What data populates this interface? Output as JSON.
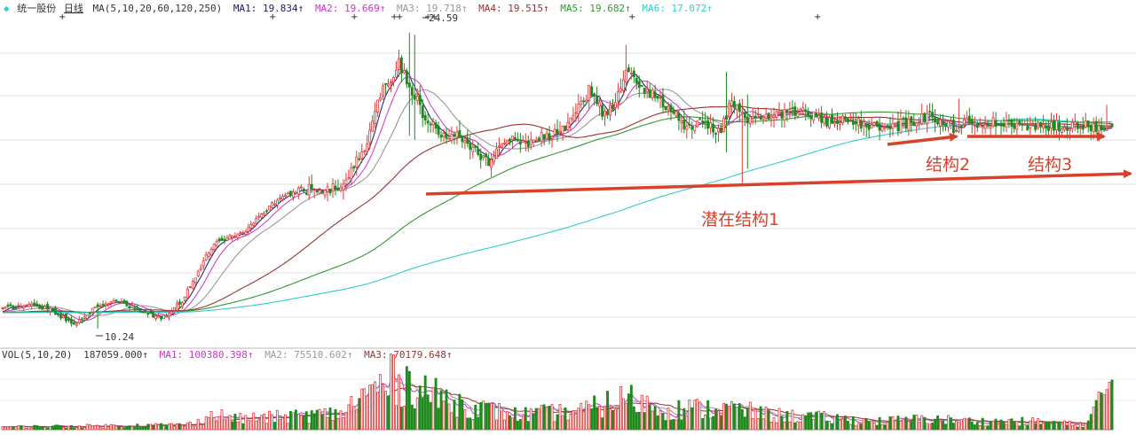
{
  "header": {
    "dot": "◆",
    "stock_name": "统一股份",
    "period": "日线",
    "ma_spec": "MA(5,10,20,60,120,250)",
    "ma_values": [
      {
        "label": "MA1: 19.834↑",
        "color": "#1a1a66"
      },
      {
        "label": "MA2: 19.669↑",
        "color": "#cc33cc"
      },
      {
        "label": "MA3: 19.718↑",
        "color": "#999999"
      },
      {
        "label": "MA4: 19.515↑",
        "color": "#993333"
      },
      {
        "label": "MA5: 19.682↑",
        "color": "#339933"
      },
      {
        "label": "MA6: 17.072↑",
        "color": "#33cccc"
      }
    ],
    "arrow_color": "#e02020"
  },
  "vol_header": {
    "spec": "VOL(5,10,20)",
    "value": "187059.000↑",
    "ma_values": [
      {
        "label": "MA1: 100380.398↑",
        "color": "#cc33cc"
      },
      {
        "label": "MA2: 75510.602↑",
        "color": "#999999"
      },
      {
        "label": "MA3: 70179.648↑",
        "color": "#993333"
      }
    ]
  },
  "chart_data": {
    "type": "candlestick",
    "title": "统一股份 日线",
    "ylim": [
      9.5,
      25.5
    ],
    "price_labels": {
      "high": "24.59",
      "low": "10.24"
    },
    "anchors": [
      [
        0,
        11.2
      ],
      [
        10,
        11.4
      ],
      [
        18,
        11.2
      ],
      [
        27,
        10.4
      ],
      [
        32,
        11.0
      ],
      [
        42,
        11.6
      ],
      [
        52,
        11.1
      ],
      [
        60,
        10.7
      ],
      [
        68,
        11.6
      ],
      [
        80,
        14.4
      ],
      [
        92,
        15.0
      ],
      [
        102,
        16.3
      ],
      [
        112,
        17.0
      ],
      [
        122,
        17.1
      ],
      [
        127,
        17.0
      ],
      [
        137,
        18.9
      ],
      [
        142,
        21.4
      ],
      [
        147,
        22.4
      ],
      [
        150,
        23.2
      ],
      [
        154,
        22.0
      ],
      [
        160,
        20.5
      ],
      [
        166,
        19.6
      ],
      [
        172,
        19.8
      ],
      [
        178,
        19.1
      ],
      [
        184,
        18.3
      ],
      [
        190,
        19.4
      ],
      [
        198,
        19.3
      ],
      [
        206,
        19.6
      ],
      [
        214,
        20.1
      ],
      [
        222,
        21.8
      ],
      [
        228,
        20.6
      ],
      [
        232,
        21.3
      ],
      [
        236,
        22.6
      ],
      [
        242,
        22.0
      ],
      [
        250,
        21.2
      ],
      [
        258,
        20.2
      ],
      [
        266,
        20.1
      ],
      [
        272,
        19.9
      ],
      [
        276,
        21.3
      ],
      [
        282,
        20.2
      ],
      [
        288,
        20.6
      ],
      [
        296,
        20.7
      ],
      [
        304,
        20.8
      ],
      [
        312,
        20.2
      ],
      [
        318,
        20.3
      ],
      [
        326,
        20.2
      ],
      [
        334,
        19.9
      ],
      [
        344,
        20.3
      ],
      [
        352,
        20.6
      ],
      [
        360,
        20.0
      ],
      [
        368,
        20.3
      ],
      [
        376,
        20.2
      ],
      [
        386,
        20.0
      ],
      [
        396,
        20.1
      ],
      [
        404,
        20.1
      ],
      [
        412,
        20.1
      ],
      [
        420,
        20.0
      ]
    ],
    "highlights": [
      {
        "i": 154,
        "high": 24.6,
        "low": 19.6
      },
      {
        "i": 156,
        "high": 24.5,
        "low": 19.4
      },
      {
        "i": 236,
        "high": 24.0,
        "low": 21.9
      },
      {
        "i": 274,
        "high": 22.7,
        "low": 18.8
      },
      {
        "i": 280,
        "high": 21.4,
        "low": 17.3
      },
      {
        "i": 282,
        "high": 21.6,
        "low": 18.0
      },
      {
        "i": 362,
        "high": 21.4,
        "low": 20.0
      },
      {
        "i": 418,
        "high": 21.1,
        "low": 19.9
      },
      {
        "i": 36,
        "high": 11.5,
        "low": 10.24
      }
    ],
    "n_candles": 421,
    "ma_periods": [
      5,
      10,
      20,
      60,
      120,
      250
    ],
    "ma_colors": [
      "#1a1a66",
      "#cc33cc",
      "#999999",
      "#993333",
      "#339933",
      "#33cccc"
    ],
    "volume": {
      "ylim": [
        0,
        250000
      ],
      "anchors": [
        [
          0,
          10000
        ],
        [
          40,
          14000
        ],
        [
          70,
          18000
        ],
        [
          80,
          55000
        ],
        [
          90,
          40000
        ],
        [
          100,
          45000
        ],
        [
          128,
          60000
        ],
        [
          137,
          130000
        ],
        [
          148,
          190000
        ],
        [
          156,
          170000
        ],
        [
          165,
          120000
        ],
        [
          180,
          80000
        ],
        [
          195,
          55000
        ],
        [
          220,
          70000
        ],
        [
          236,
          120000
        ],
        [
          250,
          75000
        ],
        [
          275,
          80000
        ],
        [
          290,
          55000
        ],
        [
          310,
          45000
        ],
        [
          330,
          30000
        ],
        [
          350,
          40000
        ],
        [
          370,
          30000
        ],
        [
          390,
          30000
        ],
        [
          410,
          18000
        ],
        [
          420,
          187059
        ]
      ]
    },
    "annotations": [
      {
        "text": "潜在结构1"
      },
      {
        "text": "结构2"
      },
      {
        "text": "结构3"
      }
    ],
    "annotation_color": "#d9412b"
  }
}
